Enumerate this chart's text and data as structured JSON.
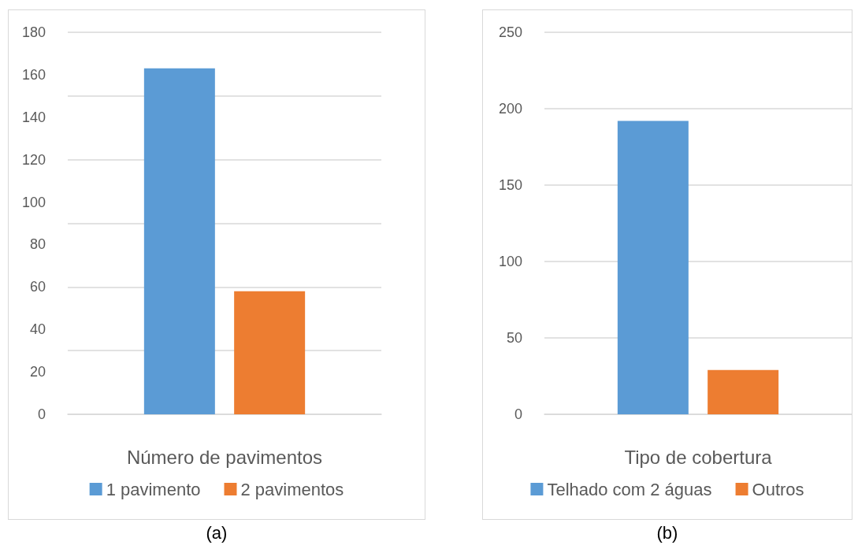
{
  "chart_data": [
    {
      "type": "bar",
      "xlabel": "Número de pavimentos",
      "categories": [
        null
      ],
      "series": [
        {
          "name": "1 pavimento",
          "color": "#5b9bd5",
          "values": [
            163
          ]
        },
        {
          "name": "2 pavimentos",
          "color": "#ed7d31",
          "values": [
            58
          ]
        }
      ],
      "ylim": [
        0,
        180
      ],
      "yticks": [
        0,
        20,
        40,
        60,
        80,
        100,
        120,
        140,
        160,
        180
      ],
      "grid": "y",
      "legend": "bottom",
      "annotations": [
        "(a)"
      ]
    },
    {
      "type": "bar",
      "xlabel": "Tipo de cobertura",
      "categories": [
        null
      ],
      "series": [
        {
          "name": "Telhado com 2 águas",
          "color": "#5b9bd5",
          "values": [
            192
          ]
        },
        {
          "name": "Outros",
          "color": "#ed7d31",
          "values": [
            29
          ]
        }
      ],
      "ylim": [
        0,
        250
      ],
      "yticks": [
        0,
        50,
        100,
        150,
        200,
        250
      ],
      "grid": "y",
      "legend": "bottom",
      "annotations": [
        "(b)"
      ]
    }
  ]
}
